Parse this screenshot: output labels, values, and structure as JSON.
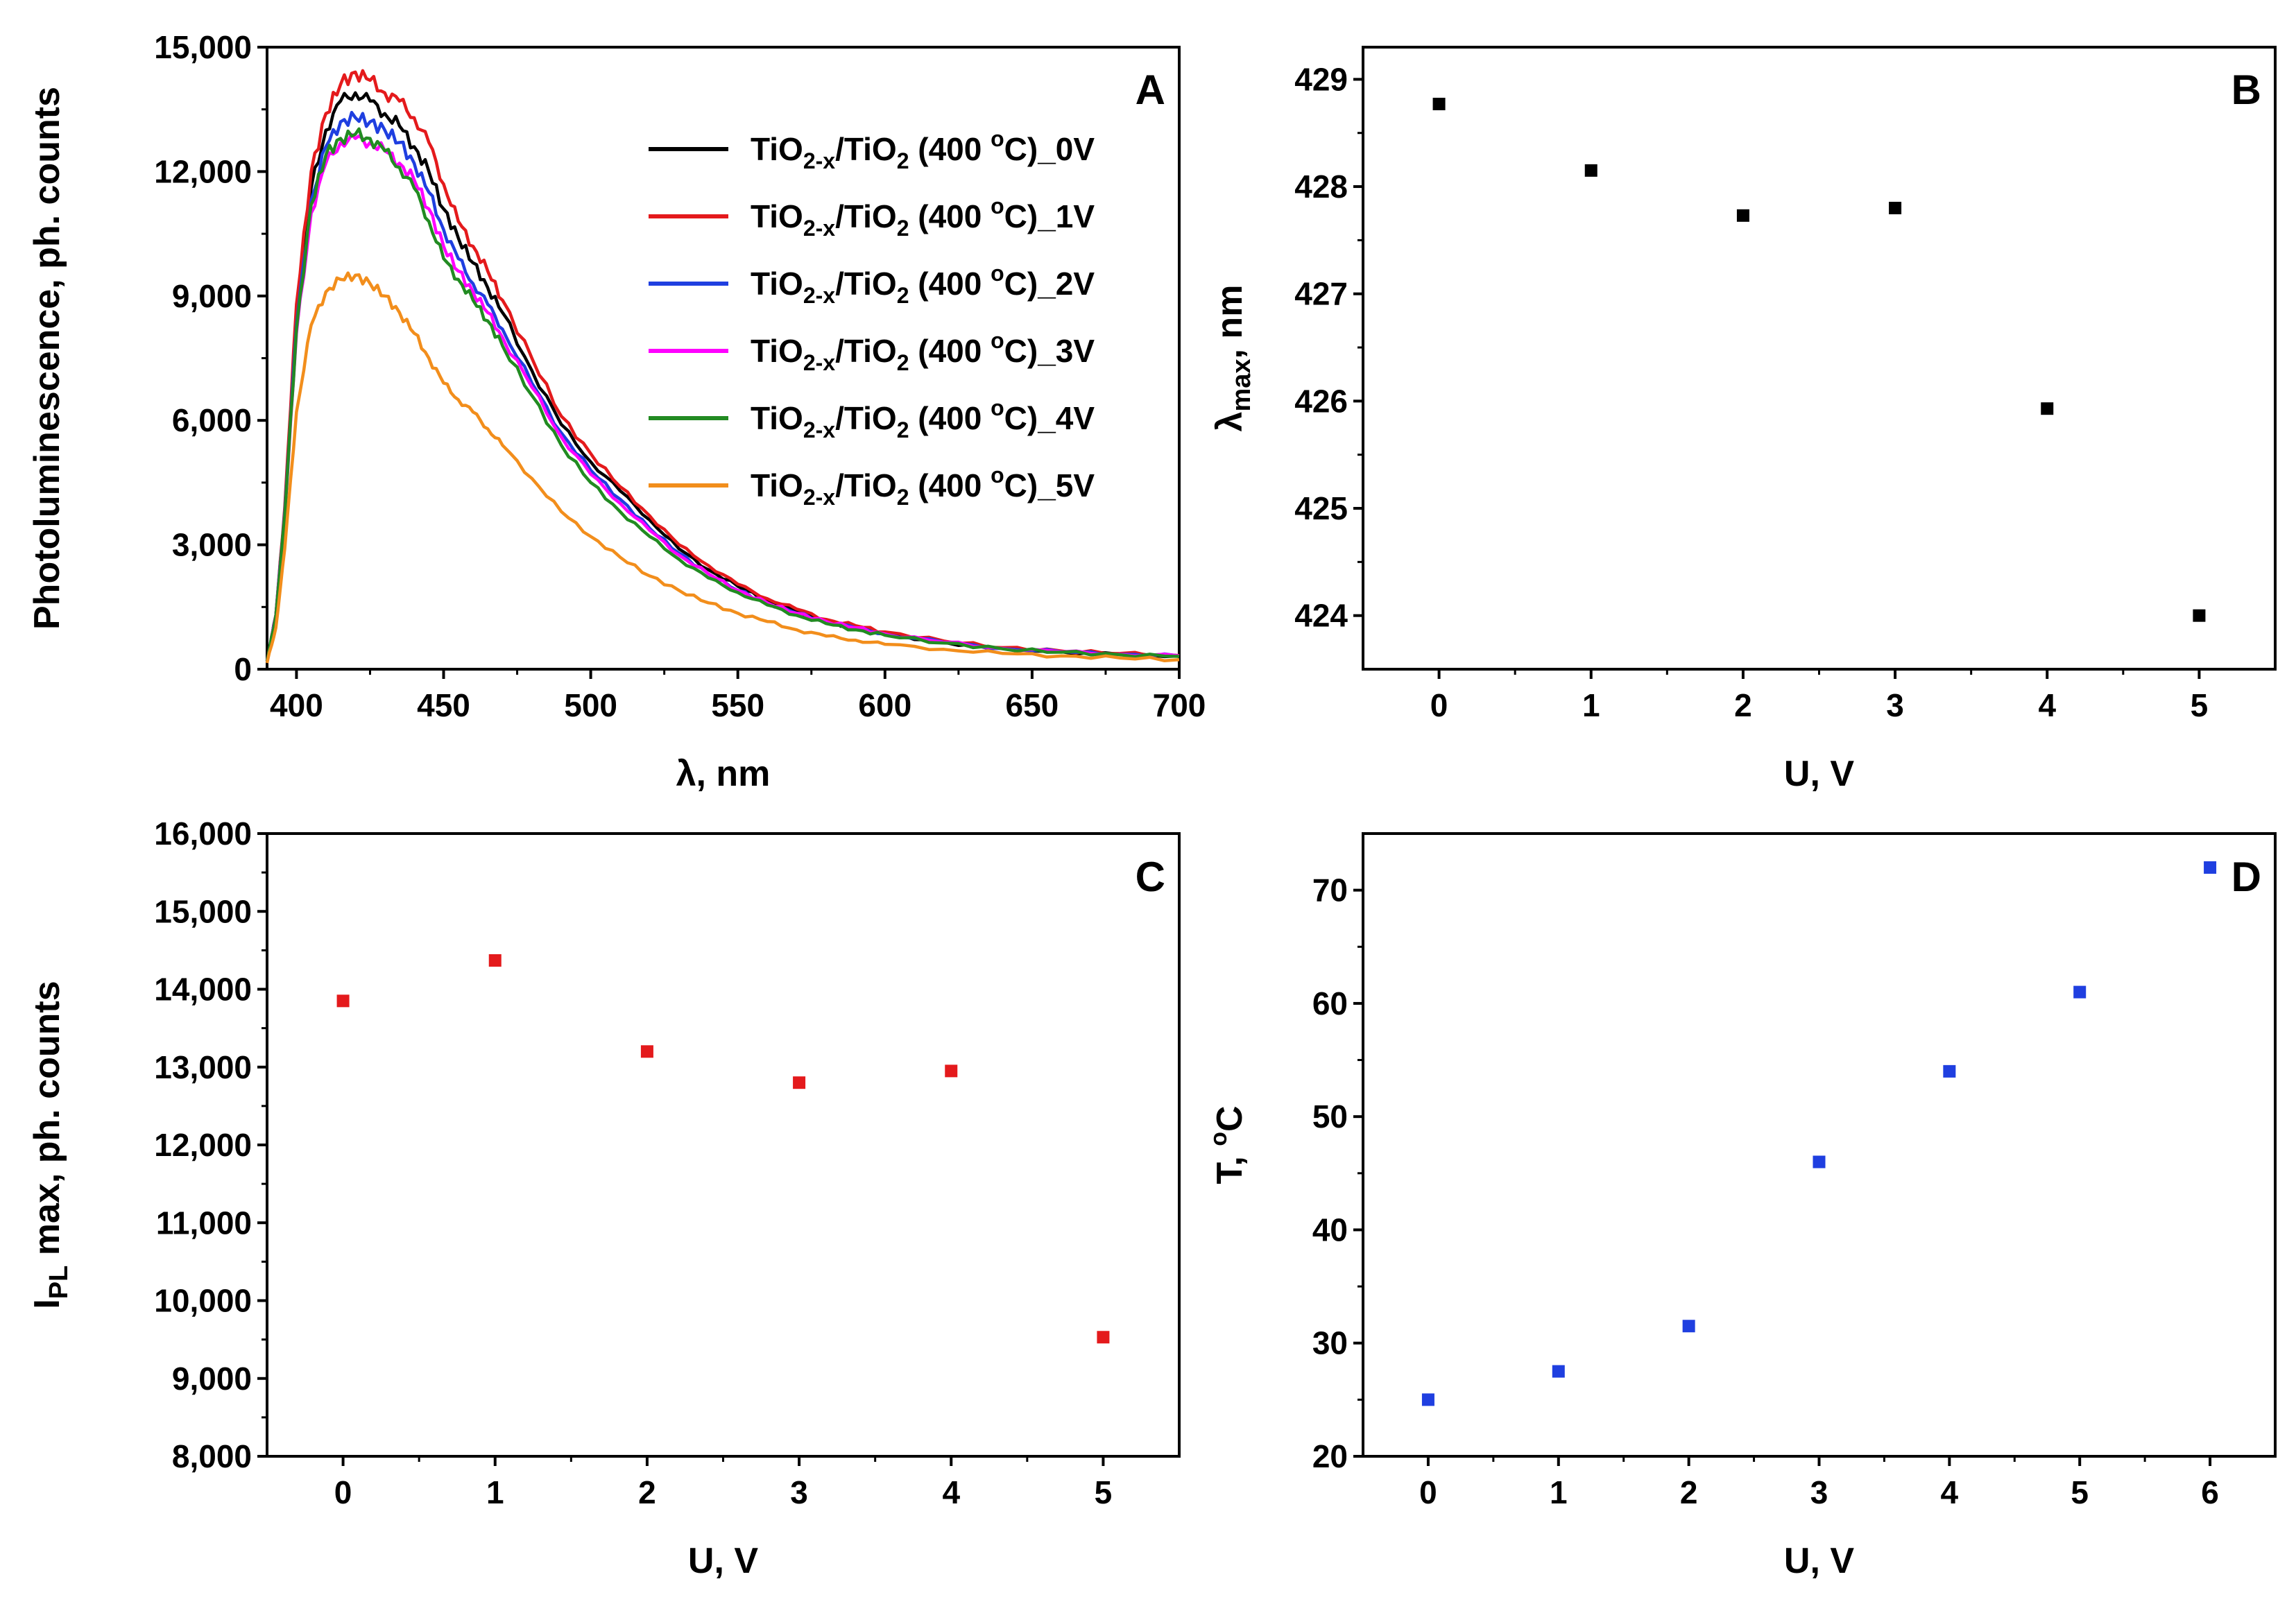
{
  "chart_data": [
    {
      "panel": "A",
      "type": "line",
      "xlabel": "λ, nm",
      "ylabel": "Photoluminescence, ph. counts",
      "xlim": [
        390,
        700
      ],
      "ylim": [
        0,
        15000
      ],
      "xticks": [
        "400",
        "450",
        "500",
        "550",
        "600",
        "650",
        "700"
      ],
      "xtick_values": [
        400,
        450,
        500,
        550,
        600,
        650,
        700
      ],
      "yticks": [
        "0",
        "3,000",
        "6,000",
        "9,000",
        "12,000",
        "15,000"
      ],
      "ytick_values": [
        0,
        3000,
        6000,
        9000,
        12000,
        15000
      ],
      "legend_position": "top-right",
      "x": [
        390,
        393,
        396,
        400,
        405,
        410,
        415,
        420,
        425,
        430,
        435,
        440,
        445,
        450,
        455,
        460,
        465,
        470,
        480,
        490,
        500,
        510,
        520,
        530,
        540,
        550,
        560,
        570,
        580,
        590,
        600,
        620,
        640,
        660,
        680,
        700
      ],
      "series": [
        {
          "name": "TiO2-x/TiO2 (400 °C)_0V",
          "color": "#000000",
          "label_main": "TiO",
          "label_sub1": "2-x",
          "label_mid": "/TiO",
          "label_sub2": "2",
          "label_tail": " (400 ",
          "label_sup": "o",
          "label_end": "C)_0V",
          "values": [
            200,
            1300,
            3800,
            8500,
            11600,
            13000,
            13700,
            13900,
            13700,
            13400,
            13100,
            12600,
            12000,
            11100,
            10400,
            9800,
            9200,
            8600,
            7200,
            5900,
            5000,
            4300,
            3600,
            2900,
            2400,
            2000,
            1650,
            1400,
            1150,
            1000,
            850,
            650,
            500,
            420,
            360,
            320
          ]
        },
        {
          "name": "TiO2-x/TiO2 (400 °C)_1V",
          "color": "#e41a1c",
          "label_main": "TiO",
          "label_sub1": "2-x",
          "label_mid": "/TiO",
          "label_sub2": "2",
          "label_tail": " (400 ",
          "label_sup": "o",
          "label_end": "C)_1V",
          "values": [
            200,
            1300,
            3900,
            8800,
            12000,
            13400,
            14100,
            14400,
            14200,
            13900,
            13700,
            13300,
            12700,
            11700,
            10800,
            10200,
            9600,
            8900,
            7500,
            6100,
            5200,
            4400,
            3700,
            3000,
            2500,
            2050,
            1700,
            1450,
            1200,
            1050,
            900,
            680,
            520,
            440,
            380,
            330
          ]
        },
        {
          "name": "TiO2-x/TiO2 (400 °C)_2V",
          "color": "#1f3fe0",
          "label_main": "TiO",
          "label_sub1": "2-x",
          "label_mid": "/TiO",
          "label_sub2": "2",
          "label_tail": " (400 ",
          "label_sup": "o",
          "label_end": "C)_2V",
          "values": [
            200,
            1300,
            3800,
            8300,
            11300,
            12600,
            13200,
            13300,
            13200,
            13000,
            12700,
            12200,
            11500,
            10600,
            9900,
            9300,
            8800,
            8200,
            6900,
            5700,
            4800,
            4100,
            3400,
            2800,
            2300,
            1900,
            1600,
            1350,
            1150,
            1000,
            850,
            650,
            500,
            420,
            360,
            320
          ]
        },
        {
          "name": "TiO2-x/TiO2 (400 °C)_3V",
          "color": "#ff00ff",
          "label_main": "TiO",
          "label_sub1": "2-x",
          "label_mid": "/TiO",
          "label_sub2": "2",
          "label_tail": " (400 ",
          "label_sup": "o",
          "label_end": "C)_3V",
          "values": [
            200,
            1300,
            3700,
            8100,
            11000,
            12200,
            12700,
            12800,
            12700,
            12500,
            12200,
            11800,
            11100,
            10200,
            9600,
            9100,
            8600,
            8000,
            6800,
            5600,
            4700,
            4000,
            3350,
            2750,
            2300,
            1900,
            1600,
            1350,
            1150,
            1000,
            850,
            650,
            500,
            420,
            360,
            320
          ]
        },
        {
          "name": "TiO2-x/TiO2 (400 °C)_4V",
          "color": "#228b22",
          "label_main": "TiO",
          "label_sub1": "2-x",
          "label_mid": "/TiO",
          "label_sub2": "2",
          "label_tail": " (400 ",
          "label_sup": "o",
          "label_end": "C)_4V",
          "values": [
            200,
            1300,
            3700,
            8200,
            11200,
            12400,
            12800,
            12900,
            12800,
            12500,
            12100,
            11600,
            10800,
            9900,
            9400,
            8900,
            8400,
            7800,
            6600,
            5400,
            4500,
            3800,
            3200,
            2650,
            2200,
            1850,
            1550,
            1300,
            1100,
            950,
            820,
            630,
            490,
            410,
            350,
            310
          ]
        },
        {
          "name": "TiO2-x/TiO2 (400 °C)_5V",
          "color": "#f28e1c",
          "label_main": "TiO",
          "label_sub1": "2-x",
          "label_mid": "/TiO",
          "label_sub2": "2",
          "label_tail": " (400 ",
          "label_sup": "o",
          "label_end": "C)_5V",
          "values": [
            150,
            1000,
            2900,
            6200,
            8300,
            9100,
            9400,
            9500,
            9300,
            9000,
            8600,
            8100,
            7500,
            6900,
            6500,
            6200,
            5800,
            5400,
            4600,
            3800,
            3200,
            2700,
            2250,
            1900,
            1600,
            1350,
            1150,
            950,
            800,
            700,
            600,
            480,
            380,
            320,
            270,
            230
          ]
        }
      ]
    },
    {
      "panel": "B",
      "type": "scatter",
      "xlabel": "U, V",
      "ylabel_main": "λ",
      "ylabel_sub": "max",
      "ylabel_tail": ", nm",
      "xlim": [
        -0.5,
        5.5
      ],
      "ylim": [
        423.5,
        429.3
      ],
      "xticks": [
        "0",
        "1",
        "2",
        "3",
        "4",
        "5"
      ],
      "xtick_values": [
        0,
        1,
        2,
        3,
        4,
        5
      ],
      "yticks": [
        "424",
        "425",
        "426",
        "427",
        "428",
        "429"
      ],
      "ytick_values": [
        424,
        425,
        426,
        427,
        428,
        429
      ],
      "color": "#000000",
      "x": [
        0,
        1,
        2,
        3,
        4,
        5
      ],
      "y": [
        428.77,
        428.15,
        427.73,
        427.8,
        425.93,
        424.0
      ]
    },
    {
      "panel": "C",
      "type": "scatter",
      "xlabel": "U, V",
      "ylabel_main": "I",
      "ylabel_sub": "PL",
      "ylabel_tail": " max, ph. counts",
      "xlim": [
        -0.5,
        5.5
      ],
      "ylim": [
        8000,
        16000
      ],
      "xticks": [
        "0",
        "1",
        "2",
        "3",
        "4",
        "5"
      ],
      "xtick_values": [
        0,
        1,
        2,
        3,
        4,
        5
      ],
      "yticks": [
        "8,000",
        "9,000",
        "10,000",
        "11,000",
        "12,000",
        "13,000",
        "14,000",
        "15,000",
        "16,000"
      ],
      "ytick_values": [
        8000,
        9000,
        10000,
        11000,
        12000,
        13000,
        14000,
        15000,
        16000
      ],
      "color": "#e41a1c",
      "x": [
        0,
        1,
        2,
        3,
        4,
        5
      ],
      "y": [
        13850,
        14370,
        13200,
        12800,
        12950,
        9530
      ]
    },
    {
      "panel": "D",
      "type": "scatter",
      "xlabel": "U, V",
      "ylabel_main": "T, ",
      "ylabel_sup": "o",
      "ylabel_tail": "C",
      "xlim": [
        -0.5,
        6.5
      ],
      "ylim": [
        20,
        75
      ],
      "xticks": [
        "0",
        "1",
        "2",
        "3",
        "4",
        "5",
        "6"
      ],
      "xtick_values": [
        0,
        1,
        2,
        3,
        4,
        5,
        6
      ],
      "yticks": [
        "20",
        "30",
        "40",
        "50",
        "60",
        "70"
      ],
      "ytick_values": [
        20,
        30,
        40,
        50,
        60,
        70
      ],
      "color": "#1f3fe0",
      "x": [
        0,
        1,
        2,
        3,
        4,
        5,
        6
      ],
      "y": [
        25,
        27.5,
        31.5,
        46,
        54,
        61,
        72
      ]
    }
  ]
}
